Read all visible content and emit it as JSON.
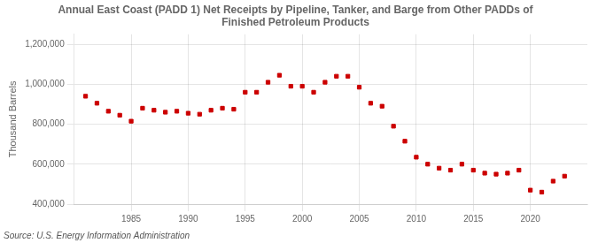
{
  "chart_data": {
    "type": "scatter",
    "title": "Annual East Coast (PADD 1) Net Receipts by Pipeline, Tanker, and Barge from Other PADDs of\nFinished Petroleum Products",
    "ylabel": "Thousand Barrels",
    "annotations": [
      "Source: U.S. Energy Information Administration"
    ],
    "x": [
      1981,
      1982,
      1983,
      1984,
      1985,
      1986,
      1987,
      1988,
      1989,
      1990,
      1991,
      1992,
      1993,
      1994,
      1995,
      1996,
      1997,
      1998,
      1999,
      2000,
      2001,
      2002,
      2003,
      2004,
      2005,
      2006,
      2007,
      2008,
      2009,
      2010,
      2011,
      2012,
      2013,
      2014,
      2015,
      2016,
      2017,
      2018,
      2019,
      2020,
      2021,
      2022,
      2023
    ],
    "values": [
      940000,
      905000,
      865000,
      845000,
      815000,
      880000,
      870000,
      860000,
      865000,
      855000,
      850000,
      870000,
      880000,
      875000,
      960000,
      960000,
      1010000,
      1045000,
      990000,
      990000,
      960000,
      1010000,
      1040000,
      1040000,
      985000,
      905000,
      890000,
      790000,
      715000,
      635000,
      600000,
      580000,
      570000,
      600000,
      570000,
      555000,
      550000,
      555000,
      570000,
      470000,
      460000,
      515000,
      540000
    ],
    "color": "#cc0000",
    "marker": "square",
    "xlim": [
      1980,
      2025
    ],
    "xticks": [
      1985,
      1990,
      1995,
      2000,
      2005,
      2010,
      2015,
      2020
    ],
    "ylim": [
      400000,
      1250000
    ],
    "yticks": [
      {
        "value": 400000,
        "label": "400,000"
      },
      {
        "value": 600000,
        "label": "600,000"
      },
      {
        "value": 800000,
        "label": "800,000"
      },
      {
        "value": 1000000,
        "label": "1,000,000"
      },
      {
        "value": 1200000,
        "label": "1,200,000"
      }
    ],
    "grid": true
  }
}
